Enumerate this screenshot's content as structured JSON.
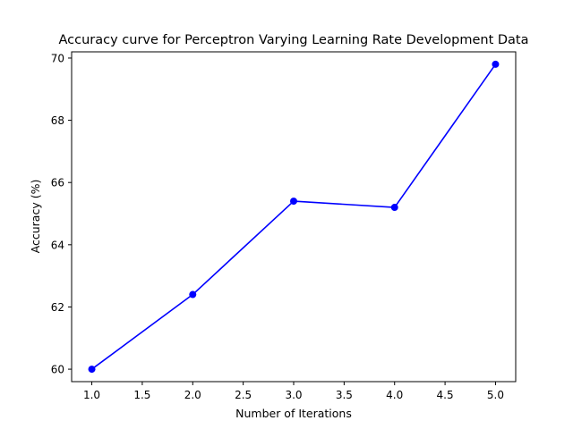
{
  "chart_data": {
    "type": "line",
    "title": "Accuracy curve for Perceptron  Varying Learning Rate Development Data",
    "xlabel": "Number of Iterations",
    "ylabel": "Accuracy (%)",
    "x": [
      1,
      2,
      3,
      4,
      5
    ],
    "series": [
      {
        "values": [
          60.0,
          62.4,
          65.4,
          65.2,
          69.8
        ],
        "color": "#0000ff",
        "marker": "circle"
      }
    ],
    "xlim": [
      0.8,
      5.2
    ],
    "ylim": [
      59.6,
      70.2
    ],
    "xticks": [
      1.0,
      1.5,
      2.0,
      2.5,
      3.0,
      3.5,
      4.0,
      4.5,
      5.0
    ],
    "xtick_labels": [
      "1.0",
      "1.5",
      "2.0",
      "2.5",
      "3.0",
      "3.5",
      "4.0",
      "4.5",
      "5.0"
    ],
    "yticks": [
      60,
      62,
      64,
      66,
      68,
      70
    ],
    "ytick_labels": [
      "60",
      "62",
      "64",
      "66",
      "68",
      "70"
    ],
    "grid": false,
    "legend": "none"
  }
}
